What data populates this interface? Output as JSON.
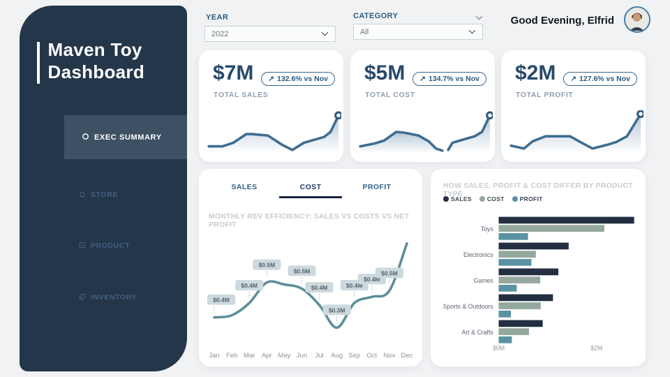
{
  "sidebar": {
    "title_line1": "Maven Toy",
    "title_line2": "Dashboard",
    "items": [
      {
        "label": "EXEC SUMMARY",
        "icon": "circle-icon",
        "active": true
      },
      {
        "label": "STORE",
        "icon": "home-icon",
        "active": false
      },
      {
        "label": "PRODUCT",
        "icon": "box-icon",
        "active": false
      },
      {
        "label": "INVENTORY",
        "icon": "copy-icon",
        "active": false
      }
    ]
  },
  "filters": {
    "year": {
      "label": "YEAR",
      "value": "2022"
    },
    "category": {
      "label": "CATEGORY",
      "value": "All"
    }
  },
  "greeting": "Good Evening, Elfrid",
  "kpis": [
    {
      "value": "$7M",
      "label": "TOTAL SALES",
      "badge_arrow": "↗",
      "badge_text": "132.6% vs Nov",
      "spark": {
        "segments": [
          [
            [
              6,
              50
            ],
            [
              25,
              50
            ],
            [
              40,
              45
            ],
            [
              58,
              33
            ],
            [
              66,
              33
            ],
            [
              88,
              35
            ],
            [
              108,
              48
            ],
            [
              122,
              55
            ],
            [
              138,
              45
            ],
            [
              152,
              41
            ],
            [
              166,
              37
            ],
            [
              175,
              30
            ],
            [
              186,
              7
            ]
          ]
        ]
      }
    },
    {
      "value": "$5M",
      "label": "TOTAL COST",
      "badge_arrow": "↗",
      "badge_text": "134.7% vs Nov",
      "spark": {
        "segments": [
          [
            [
              6,
              50
            ],
            [
              26,
              46
            ],
            [
              39,
              42
            ],
            [
              56,
              30
            ],
            [
              67,
              31
            ],
            [
              87,
              35
            ],
            [
              101,
              43
            ],
            [
              111,
              53
            ],
            [
              120,
              56
            ]
          ],
          [
            [
              128,
              55
            ],
            [
              134,
              45
            ],
            [
              144,
              42
            ],
            [
              165,
              36
            ],
            [
              175,
              30
            ],
            [
              186,
              7
            ]
          ]
        ]
      }
    },
    {
      "value": "$2M",
      "label": "TOTAL PROFIT",
      "badge_arrow": "↗",
      "badge_text": "127.6% vs Nov",
      "spark": {
        "segments": [
          [
            [
              6,
              49
            ],
            [
              24,
              53
            ],
            [
              36,
              43
            ],
            [
              54,
              36
            ],
            [
              72,
              36
            ],
            [
              88,
              36
            ],
            [
              104,
              45
            ],
            [
              119,
              53
            ],
            [
              139,
              48
            ],
            [
              152,
              44
            ],
            [
              167,
              36
            ],
            [
              186,
              5
            ]
          ]
        ]
      }
    }
  ],
  "tabs": {
    "items": [
      "SALES",
      "COST",
      "PROFIT"
    ],
    "active": "COST"
  },
  "chart_data": [
    {
      "id": "monthly-rev-efficiency",
      "type": "line",
      "title": "MONTHLY REV EFFICIENCY: SALES VS COSTS VS NET PROFIT",
      "x": [
        "Jan",
        "Feb",
        "Mar",
        "Apr",
        "May",
        "Jun",
        "Jul",
        "Aug",
        "Sep",
        "Oct",
        "Nov",
        "Dec"
      ],
      "values": [
        0.35,
        0.36,
        0.42,
        0.52,
        0.51,
        0.49,
        0.41,
        0.3,
        0.42,
        0.45,
        0.48,
        0.71
      ],
      "point_labels": [
        "$0.4M",
        null,
        "$0.4M",
        "$0.5M",
        null,
        "$0.5M",
        "$0.4M",
        "$0.3M",
        "$0.4M",
        "$0.4M",
        "$0.5M",
        null
      ],
      "ylim": [
        0.25,
        0.76
      ],
      "unit": "$M",
      "line_color": "#5d8f99",
      "label_bg": "#cdd9de",
      "label_text_color": "#54646c",
      "grid": false
    },
    {
      "id": "by-product-type",
      "type": "bar",
      "orientation": "horizontal",
      "title": "HOW SALES, PROFIT & COST DIFFER BY PRODUCT TYPE",
      "categories": [
        "Toys",
        "Electronics",
        "Games",
        "Sports & Outdoors",
        "Art & Crafts"
      ],
      "series": [
        {
          "name": "SALES",
          "color": "#232e41",
          "values": [
            2.77,
            1.43,
            1.22,
            1.11,
            0.9
          ]
        },
        {
          "name": "COST",
          "color": "#95a89e",
          "values": [
            2.16,
            0.76,
            0.85,
            0.86,
            0.62
          ]
        },
        {
          "name": "PROFIT",
          "color": "#5b92a3",
          "values": [
            0.6,
            0.67,
            0.37,
            0.25,
            0.27
          ]
        }
      ],
      "xticks": [
        {
          "label": "$0M",
          "value": 0
        },
        {
          "label": "$2M",
          "value": 2
        }
      ],
      "xlim": [
        0,
        2.9
      ],
      "legend_position": "top-left"
    }
  ],
  "colors": {
    "sidebar_bg": "#24364a",
    "sidebar_active_bg": "#3d5064",
    "kpi_spark_line": "#3f6d90",
    "kpi_spark_fill": "#7d9cb8",
    "accent_navy": "#27496b"
  }
}
